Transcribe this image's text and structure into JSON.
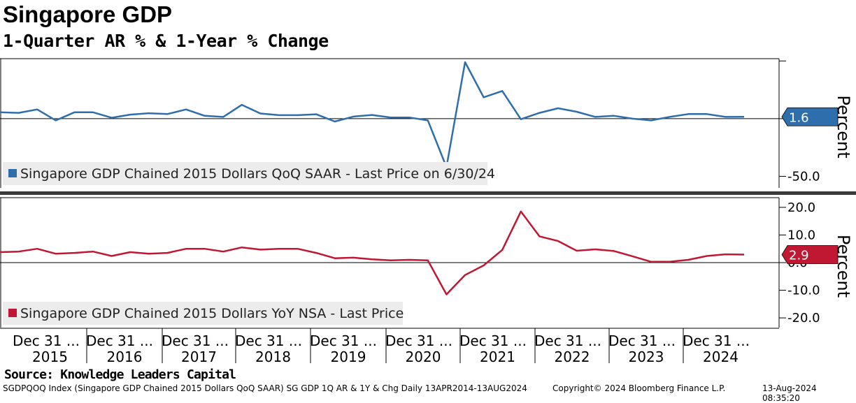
{
  "header": {
    "title": "Singapore GDP",
    "subtitle": "1-Quarter AR % & 1-Year % Change"
  },
  "footer": {
    "source": "Source: Knowledge Leaders Capital",
    "ticker_info": "SGDPQOQ Index (Singapore GDP Chained 2015 Dollars QoQ SAAR) SG GDP 1Q AR & 1Y & Chg  Daily 13APR2014-13AUG2024",
    "copyright": "Copyright© 2024 Bloomberg Finance L.P.",
    "timestamp": "13-Aug-2024 08:35:20"
  },
  "x_axis": {
    "month_labels": [
      "Dec 31 ...",
      "Dec 31 ...",
      "Dec 31 ...",
      "Dec 31 ...",
      "Dec 31 ...",
      "Dec 31 ...",
      "Dec 31 ...",
      "Dec 31 ...",
      "Dec 31 ...",
      "Dec 31 ..."
    ],
    "years": [
      "2015",
      "2016",
      "2017",
      "2018",
      "2019",
      "2020",
      "2021",
      "2022",
      "2023",
      "2024"
    ]
  },
  "colors": {
    "blue_series": "#2e6ead",
    "red_series": "#c01732",
    "divider": "#3a3a3a"
  },
  "chart_data": [
    {
      "type": "line",
      "panel": "top",
      "ylabel": "Percent",
      "ylim": [
        -60,
        52
      ],
      "yticks": [
        -50,
        0,
        50
      ],
      "ytick_labels": [
        "-50.0",
        "",
        ""
      ],
      "x": [
        "2014-Q2",
        "2014-Q3",
        "2014-Q4",
        "2015-Q1",
        "2015-Q2",
        "2015-Q3",
        "2015-Q4",
        "2016-Q1",
        "2016-Q2",
        "2016-Q3",
        "2016-Q4",
        "2017-Q1",
        "2017-Q2",
        "2017-Q3",
        "2017-Q4",
        "2018-Q1",
        "2018-Q2",
        "2018-Q3",
        "2018-Q4",
        "2019-Q1",
        "2019-Q2",
        "2019-Q3",
        "2019-Q4",
        "2020-Q1",
        "2020-Q2",
        "2020-Q3",
        "2020-Q4",
        "2021-Q1",
        "2021-Q2",
        "2021-Q3",
        "2021-Q4",
        "2022-Q1",
        "2022-Q2",
        "2022-Q3",
        "2022-Q4",
        "2023-Q1",
        "2023-Q2",
        "2023-Q3",
        "2023-Q4",
        "2024-Q1",
        "2024-Q2"
      ],
      "series": [
        {
          "name": "Singapore GDP Chained 2015 Dollars QoQ SAAR - Last Price on 6/30/24",
          "values": [
            5.5,
            5,
            8,
            -1.5,
            5.5,
            5.5,
            0.8,
            3.5,
            4.7,
            4,
            8,
            2.5,
            1.5,
            12,
            4.5,
            3,
            3,
            3.8,
            -2.5,
            1.8,
            3.2,
            1,
            1,
            -1.5,
            -42,
            49,
            18.5,
            24,
            -0.5,
            5,
            9,
            6,
            1.5,
            2.5,
            0,
            -1.5,
            1.5,
            4,
            4,
            1.5,
            1.6
          ]
        }
      ],
      "last_value_label": "1.6",
      "legend": "bottom-left"
    },
    {
      "type": "line",
      "panel": "bottom",
      "ylabel": "Percent",
      "ylim": [
        -23.5,
        23.5
      ],
      "yticks": [
        -20,
        -10,
        0,
        10,
        20
      ],
      "ytick_labels": [
        "-20.0",
        "-10.0",
        "0.0",
        "10.0",
        "20.0"
      ],
      "x": [
        "2014-Q2",
        "2014-Q3",
        "2014-Q4",
        "2015-Q1",
        "2015-Q2",
        "2015-Q3",
        "2015-Q4",
        "2016-Q1",
        "2016-Q2",
        "2016-Q3",
        "2016-Q4",
        "2017-Q1",
        "2017-Q2",
        "2017-Q3",
        "2017-Q4",
        "2018-Q1",
        "2018-Q2",
        "2018-Q3",
        "2018-Q4",
        "2019-Q1",
        "2019-Q2",
        "2019-Q3",
        "2019-Q4",
        "2020-Q1",
        "2020-Q2",
        "2020-Q3",
        "2020-Q4",
        "2021-Q1",
        "2021-Q2",
        "2021-Q3",
        "2021-Q4",
        "2022-Q1",
        "2022-Q2",
        "2022-Q3",
        "2022-Q4",
        "2023-Q1",
        "2023-Q2",
        "2023-Q3",
        "2023-Q4",
        "2024-Q1",
        "2024-Q2"
      ],
      "series": [
        {
          "name": "Singapore GDP Chained 2015 Dollars YoY NSA - Last Price",
          "values": [
            3.8,
            4,
            5,
            3.2,
            3.5,
            4,
            2.4,
            3.8,
            3.2,
            3.5,
            5,
            5,
            4,
            5.5,
            4.7,
            5,
            5,
            3.5,
            1.6,
            1.8,
            1.2,
            0.8,
            1,
            0.8,
            -11.5,
            -4.5,
            -1,
            4.6,
            18.5,
            9.5,
            7.8,
            4.3,
            4.8,
            4.2,
            2.3,
            0.3,
            0.3,
            1,
            2.4,
            3,
            2.9
          ]
        }
      ],
      "last_value_label": "2.9",
      "legend": "bottom-left"
    }
  ]
}
